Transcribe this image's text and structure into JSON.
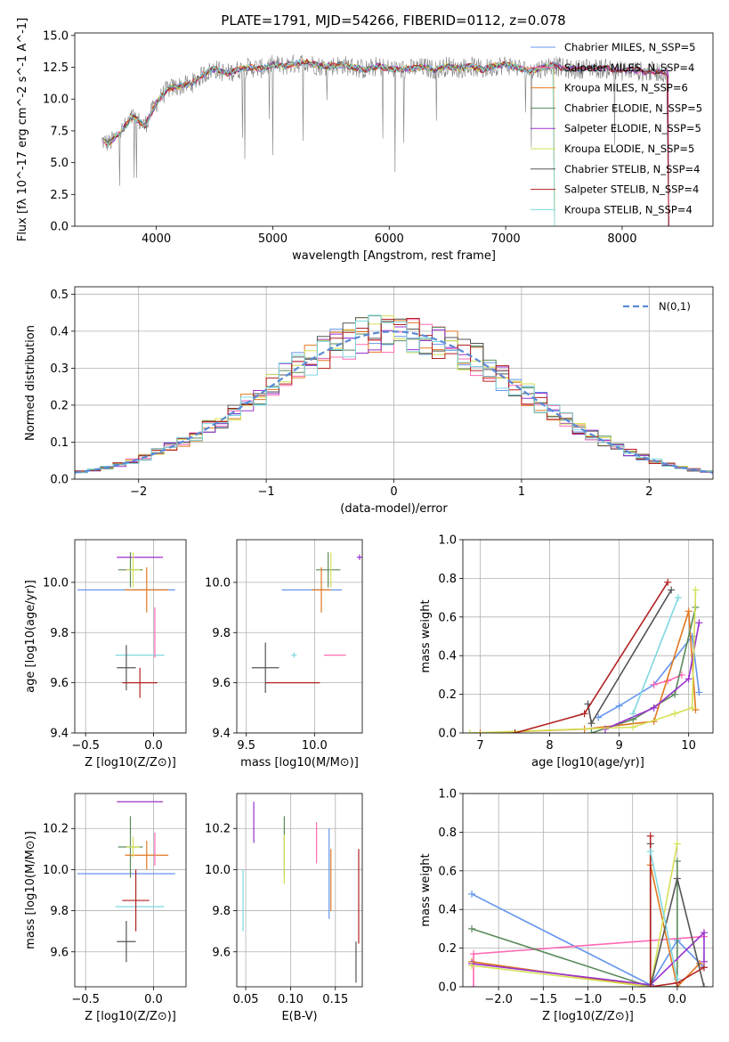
{
  "figure": {
    "title": "PLATE=1791, MJD=54266, FIBERID=0112, z=0.078"
  },
  "chart_data": [
    {
      "type": "line",
      "panel": "spectrum",
      "xlabel": "wavelength [Angstrom, rest frame]",
      "ylabel": "Flux [fλ 10^-17 erg cm^-2 s^-1 A^-1]",
      "xlim": [
        3300,
        8780
      ],
      "ylim": [
        0,
        15.2
      ],
      "xticks": [
        4000,
        5000,
        6000,
        7000,
        8000
      ],
      "yticks": [
        0.0,
        2.5,
        5.0,
        7.5,
        10.0,
        12.5,
        15.0
      ],
      "grid": false,
      "legend_position": "top-right",
      "data_series": {
        "name": "data",
        "color": "#808080",
        "x": [
          3500,
          3600,
          3700,
          3800,
          3900,
          4000,
          4100,
          4200,
          4300,
          4400,
          4500,
          4600,
          4700,
          4800,
          4900,
          5000,
          5100,
          5200,
          5300,
          5400,
          5500,
          5600,
          5700,
          5800,
          5900,
          6000,
          6100,
          6200,
          6300,
          6400,
          6500,
          6600,
          6700,
          6800,
          6900,
          7000,
          7100,
          7200,
          7300,
          7400,
          7500,
          7600,
          7700,
          7800,
          7900,
          8000,
          8100,
          8200,
          8300,
          8400
        ],
        "y": [
          6.8,
          6.5,
          7.5,
          8.6,
          7.9,
          9.7,
          10.8,
          11.0,
          11.2,
          11.9,
          12.4,
          12.0,
          12.3,
          12.5,
          12.4,
          12.7,
          12.6,
          12.8,
          12.9,
          12.6,
          12.6,
          12.7,
          12.5,
          12.3,
          12.6,
          12.4,
          12.3,
          12.4,
          12.5,
          12.3,
          12.6,
          12.4,
          12.6,
          12.3,
          12.6,
          12.7,
          12.5,
          12.2,
          12.4,
          12.7,
          12.4,
          12.3,
          12.5,
          12.4,
          12.4,
          12.2,
          12.3,
          12.1,
          12.2,
          12.0
        ]
      },
      "series": [
        {
          "name": "Chabrier MILES, N_SSP=5",
          "color": "#6495ed"
        },
        {
          "name": "Salpeter MILES, N_SSP=4",
          "color": "#ff69b4"
        },
        {
          "name": "Kroupa MILES, N_SSP=6",
          "color": "#e07820"
        },
        {
          "name": "Chabrier ELODIE, N_SSP=5",
          "color": "#5a8a5a"
        },
        {
          "name": "Salpeter ELODIE, N_SSP=5",
          "color": "#9932cc"
        },
        {
          "name": "Kroupa ELODIE, N_SSP=5",
          "color": "#d4e157"
        },
        {
          "name": "Chabrier STELIB, N_SSP=4",
          "color": "#555555"
        },
        {
          "name": "Salpeter STELIB, N_SSP=4",
          "color": "#b22222"
        },
        {
          "name": "Kroupa STELIB, N_SSP=4",
          "color": "#7fd8e0"
        }
      ]
    },
    {
      "type": "line",
      "panel": "residual_histogram",
      "xlabel": "(data-model)/error",
      "ylabel": "Normed distribution",
      "xlim": [
        -2.5,
        2.5
      ],
      "ylim": [
        0,
        0.52
      ],
      "xticks": [
        -2,
        -1,
        0,
        1,
        2
      ],
      "yticks": [
        0.0,
        0.1,
        0.2,
        0.3,
        0.4,
        0.5
      ],
      "grid": true,
      "legend_position": "top-right",
      "gaussian": {
        "name": "N(0,1)",
        "color": "#5a8ad6",
        "mean": 0,
        "sigma": 1
      }
    },
    {
      "type": "scatter",
      "panel": "age_vs_Z",
      "xlabel": "Z [log10(Z/Z⊙)]",
      "ylabel": "age [log10(age/yr)]",
      "xlim": [
        -0.58,
        0.24
      ],
      "ylim": [
        9.4,
        10.17
      ],
      "xticks": [
        -0.5,
        0.0
      ],
      "yticks": [
        9.4,
        9.6,
        9.8,
        10.0
      ],
      "grid": true,
      "points": [
        {
          "x": -0.2,
          "y": 9.97,
          "xerr": 0.36,
          "yerr": 0.0,
          "color": "#6495ed"
        },
        {
          "x": -0.17,
          "y": 10.05,
          "xerr": 0.09,
          "yerr": 0.07,
          "color": "#5a8a5a"
        },
        {
          "x": -0.1,
          "y": 10.1,
          "xerr": 0.17,
          "yerr": 0.0,
          "color": "#9932cc"
        },
        {
          "x": -0.05,
          "y": 9.97,
          "xerr": 0.16,
          "yerr": 0.09,
          "color": "#e07820"
        },
        {
          "x": -0.15,
          "y": 10.05,
          "xerr": 0.05,
          "yerr": 0.07,
          "color": "#d4e157"
        },
        {
          "x": -0.1,
          "y": 9.71,
          "xerr": 0.18,
          "yerr": 0.0,
          "color": "#7fd8e0"
        },
        {
          "x": 0.01,
          "y": 9.8,
          "xerr": 0.0,
          "yerr": 0.1,
          "color": "#ff69b4"
        },
        {
          "x": -0.2,
          "y": 9.66,
          "xerr": 0.07,
          "yerr": 0.09,
          "color": "#555555"
        },
        {
          "x": -0.1,
          "y": 9.6,
          "xerr": 0.13,
          "yerr": 0.06,
          "color": "#b22222"
        }
      ]
    },
    {
      "type": "scatter",
      "panel": "age_vs_mass",
      "xlabel": "mass [log10(M/M⊙)]",
      "ylabel": "",
      "xlim": [
        9.43,
        10.35
      ],
      "ylim": [
        9.4,
        10.17
      ],
      "xticks": [
        9.5,
        10.0
      ],
      "yticks": [
        9.4,
        9.6,
        9.8,
        10.0
      ],
      "grid": true,
      "points": [
        {
          "x": 9.98,
          "y": 9.97,
          "xerr": 0.22,
          "yerr": 0.0,
          "color": "#6495ed"
        },
        {
          "x": 10.1,
          "y": 10.05,
          "xerr": 0.09,
          "yerr": 0.07,
          "color": "#5a8a5a"
        },
        {
          "x": 10.33,
          "y": 10.1,
          "xerr": 0.0,
          "yerr": 0.0,
          "color": "#9932cc"
        },
        {
          "x": 10.05,
          "y": 9.97,
          "xerr": 0.07,
          "yerr": 0.09,
          "color": "#e07820"
        },
        {
          "x": 10.12,
          "y": 10.05,
          "xerr": 0.0,
          "yerr": 0.07,
          "color": "#d4e157"
        },
        {
          "x": 9.85,
          "y": 9.71,
          "xerr": 0.0,
          "yerr": 0.0,
          "color": "#7fd8e0"
        },
        {
          "x": 10.15,
          "y": 9.71,
          "xerr": 0.08,
          "yerr": 0.0,
          "color": "#ff69b4"
        },
        {
          "x": 9.64,
          "y": 9.66,
          "xerr": 0.1,
          "yerr": 0.1,
          "color": "#555555"
        },
        {
          "x": 9.84,
          "y": 9.6,
          "xerr": 0.2,
          "yerr": 0.0,
          "color": "#b22222"
        }
      ]
    },
    {
      "type": "line",
      "panel": "mass_weight_vs_age",
      "xlabel": "age [log10(age/yr)]",
      "ylabel": "mass weight",
      "xlim": [
        6.75,
        10.35
      ],
      "ylim": [
        0,
        1.0
      ],
      "xticks": [
        7,
        8,
        9,
        10
      ],
      "yticks": [
        0.0,
        0.2,
        0.4,
        0.6,
        0.8,
        1.0
      ],
      "grid": true,
      "series": [
        {
          "color": "#6495ed",
          "x": [
            8.7,
            9.0,
            9.5,
            10.05,
            10.15
          ],
          "y": [
            0.08,
            0.14,
            0.25,
            0.5,
            0.21
          ]
        },
        {
          "color": "#ff69b4",
          "x": [
            9.5,
            9.7,
            9.9
          ],
          "y": [
            0.25,
            0.27,
            0.3
          ]
        },
        {
          "color": "#e07820",
          "x": [
            7.0,
            8.5,
            9.5,
            10.0,
            10.1
          ],
          "y": [
            0.0,
            0.02,
            0.06,
            0.63,
            0.12
          ]
        },
        {
          "color": "#5a8a5a",
          "x": [
            8.6,
            9.2,
            9.8,
            10.1
          ],
          "y": [
            0.0,
            0.07,
            0.2,
            0.65
          ]
        },
        {
          "color": "#9932cc",
          "x": [
            8.8,
            9.5,
            10.0,
            10.15
          ],
          "y": [
            0.02,
            0.13,
            0.28,
            0.57
          ]
        },
        {
          "color": "#d4e157",
          "x": [
            6.85,
            9.2,
            9.8,
            10.05,
            10.1
          ],
          "y": [
            0.0,
            0.03,
            0.1,
            0.13,
            0.74
          ]
        },
        {
          "color": "#555555",
          "x": [
            8.55,
            8.6,
            9.75
          ],
          "y": [
            0.15,
            0.05,
            0.74
          ]
        },
        {
          "color": "#b22222",
          "x": [
            7.5,
            8.5,
            9.7
          ],
          "y": [
            0.0,
            0.1,
            0.78
          ]
        },
        {
          "color": "#7fd8e0",
          "x": [
            9.2,
            9.85
          ],
          "y": [
            0.1,
            0.7
          ]
        }
      ]
    },
    {
      "type": "scatter",
      "panel": "mass_vs_Z",
      "xlabel": "Z [log10(Z/Z⊙)]",
      "ylabel": "mass [log10(M/M⊙)]",
      "xlim": [
        -0.58,
        0.24
      ],
      "ylim": [
        9.43,
        10.37
      ],
      "xticks": [
        -0.5,
        0.0
      ],
      "yticks": [
        9.6,
        9.8,
        10.0,
        10.2
      ],
      "grid": true,
      "points": [
        {
          "x": -0.2,
          "y": 9.98,
          "xerr": 0.36,
          "yerr": 0.0,
          "color": "#6495ed"
        },
        {
          "x": -0.17,
          "y": 10.11,
          "xerr": 0.09,
          "yerr": 0.15,
          "color": "#5a8a5a"
        },
        {
          "x": -0.1,
          "y": 10.33,
          "xerr": 0.17,
          "yerr": 0.0,
          "color": "#9932cc"
        },
        {
          "x": -0.05,
          "y": 10.07,
          "xerr": 0.16,
          "yerr": 0.07,
          "color": "#e07820"
        },
        {
          "x": -0.15,
          "y": 10.11,
          "xerr": 0.05,
          "yerr": 0.05,
          "color": "#d4e157"
        },
        {
          "x": -0.1,
          "y": 9.82,
          "xerr": 0.18,
          "yerr": 0.0,
          "color": "#7fd8e0"
        },
        {
          "x": 0.01,
          "y": 10.1,
          "xerr": 0.0,
          "yerr": 0.08,
          "color": "#ff69b4"
        },
        {
          "x": -0.2,
          "y": 9.65,
          "xerr": 0.07,
          "yerr": 0.1,
          "color": "#555555"
        },
        {
          "x": -0.13,
          "y": 9.85,
          "xerr": 0.1,
          "yerr": 0.15,
          "color": "#b22222"
        }
      ]
    },
    {
      "type": "scatter",
      "panel": "mass_vs_EBV",
      "xlabel": "E(B-V)",
      "ylabel": "",
      "xlim": [
        0.04,
        0.18
      ],
      "ylim": [
        9.43,
        10.37
      ],
      "xticks": [
        0.05,
        0.1,
        0.15
      ],
      "yticks": [
        9.6,
        9.8,
        10.0,
        10.2
      ],
      "grid": true,
      "points": [
        {
          "x": 0.143,
          "y": 9.98,
          "xerr": 0.0,
          "yerr": 0.22,
          "color": "#6495ed"
        },
        {
          "x": 0.093,
          "y": 10.11,
          "xerr": 0.0,
          "yerr": 0.15,
          "color": "#5a8a5a"
        },
        {
          "x": 0.059,
          "y": 10.23,
          "xerr": 0.0,
          "yerr": 0.1,
          "color": "#9932cc"
        },
        {
          "x": 0.145,
          "y": 9.95,
          "xerr": 0.0,
          "yerr": 0.15,
          "color": "#e07820"
        },
        {
          "x": 0.093,
          "y": 10.05,
          "xerr": 0.0,
          "yerr": 0.12,
          "color": "#d4e157"
        },
        {
          "x": 0.047,
          "y": 9.85,
          "xerr": 0.0,
          "yerr": 0.15,
          "color": "#7fd8e0"
        },
        {
          "x": 0.129,
          "y": 10.13,
          "xerr": 0.0,
          "yerr": 0.1,
          "color": "#ff69b4"
        },
        {
          "x": 0.173,
          "y": 9.55,
          "xerr": 0.0,
          "yerr": 0.1,
          "color": "#555555"
        },
        {
          "x": 0.176,
          "y": 9.87,
          "xerr": 0.0,
          "yerr": 0.23,
          "color": "#b22222"
        }
      ]
    },
    {
      "type": "line",
      "panel": "mass_weight_vs_Z",
      "xlabel": "Z [log10(Z/Z⊙)]",
      "ylabel": "mass weight",
      "xlim": [
        -2.4,
        0.4
      ],
      "ylim": [
        0,
        1.0
      ],
      "xticks": [
        -2.0,
        -1.5,
        -1.0,
        -0.5,
        0.0
      ],
      "yticks": [
        0.0,
        0.2,
        0.4,
        0.6,
        0.8,
        1.0
      ],
      "grid": true,
      "series": [
        {
          "color": "#6495ed",
          "x": [
            -2.3,
            -0.3,
            0.0,
            0.3
          ],
          "y": [
            0.48,
            0.01,
            0.24,
            0.1
          ]
        },
        {
          "color": "#ff69b4",
          "x": [
            -2.28,
            -2.28,
            0.3
          ],
          "y": [
            0.0,
            0.17,
            0.26
          ]
        },
        {
          "color": "#e07820",
          "x": [
            -2.3,
            -0.3,
            -0.3,
            0.0,
            0.25
          ],
          "y": [
            0.13,
            0.0,
            0.63,
            0.0,
            0.12
          ]
        },
        {
          "color": "#5a8a5a",
          "x": [
            -2.3,
            -0.3,
            0.0,
            0.0
          ],
          "y": [
            0.3,
            0.0,
            0.0,
            0.65
          ]
        },
        {
          "color": "#9932cc",
          "x": [
            -2.3,
            -0.3,
            0.3,
            0.3
          ],
          "y": [
            0.12,
            0.01,
            0.28,
            0.13
          ]
        },
        {
          "color": "#d4e157",
          "x": [
            -2.3,
            -0.3,
            0.0
          ],
          "y": [
            0.11,
            0.0,
            0.74
          ]
        },
        {
          "color": "#555555",
          "x": [
            -0.3,
            -0.3,
            0.0,
            0.3
          ],
          "y": [
            0.74,
            0.0,
            0.56,
            0.0
          ]
        },
        {
          "color": "#b22222",
          "x": [
            -0.3,
            -0.3,
            0.0,
            0.3
          ],
          "y": [
            0.78,
            0.0,
            0.02,
            0.1
          ]
        },
        {
          "color": "#7fd8e0",
          "x": [
            -0.3,
            0.0
          ],
          "y": [
            0.7,
            0.04
          ]
        }
      ]
    }
  ]
}
